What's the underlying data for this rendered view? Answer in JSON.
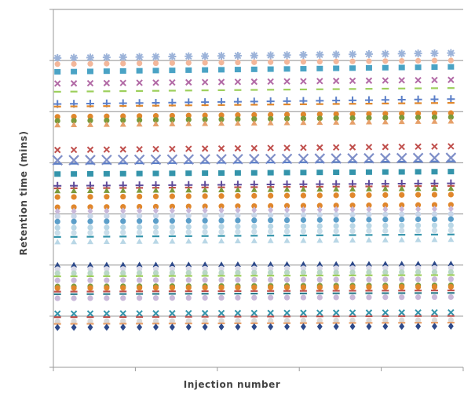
{
  "chart_data": {
    "type": "scatter",
    "title": "",
    "xlabel": "Injection number",
    "ylabel": "Retention time (mins)",
    "xlim": [
      0,
      25
    ],
    "ylim": [
      0,
      7
    ],
    "grid": true,
    "injections": [
      1,
      2,
      3,
      4,
      5,
      6,
      7,
      8,
      9,
      10,
      11,
      12,
      13,
      14,
      15,
      16,
      17,
      18,
      19,
      20,
      21,
      22,
      23,
      24,
      25
    ],
    "series": [
      {
        "y": 6.05,
        "marker": "star",
        "color": "#9cb3d9",
        "drift": 0.004
      },
      {
        "y": 5.93,
        "marker": "circle",
        "color": "#f3b79a",
        "drift": 0.003
      },
      {
        "y": 5.78,
        "marker": "square",
        "color": "#4aa3c5",
        "drift": 0.004
      },
      {
        "y": 5.55,
        "marker": "x",
        "color": "#b26aa6",
        "drift": 0.003
      },
      {
        "y": 5.39,
        "marker": "dash",
        "color": "#9ccf5b",
        "drift": 0.003
      },
      {
        "y": 5.15,
        "marker": "plus",
        "color": "#5b7fc8",
        "drift": 0.004
      },
      {
        "y": 5.1,
        "marker": "dash",
        "color": "#e0872c",
        "drift": 0.003
      },
      {
        "y": 4.9,
        "marker": "circle",
        "color": "#e0872c",
        "drift": 0.003
      },
      {
        "y": 4.82,
        "marker": "circle",
        "color": "#7a9a3c",
        "drift": 0.003
      },
      {
        "y": 4.74,
        "marker": "triangle",
        "color": "#e6a06a",
        "drift": 0.003
      },
      {
        "y": 4.25,
        "marker": "x",
        "color": "#c0504d",
        "drift": 0.003
      },
      {
        "y": 4.05,
        "marker": "bigx",
        "color": "#7f8fc8",
        "drift": 0.002
      },
      {
        "y": 3.98,
        "marker": "dash",
        "color": "#5b7fc8",
        "drift": 0.002
      },
      {
        "y": 3.78,
        "marker": "square",
        "color": "#3494ab",
        "drift": 0.002
      },
      {
        "y": 3.55,
        "marker": "plus",
        "color": "#5d4a9a",
        "drift": 0.002
      },
      {
        "y": 3.5,
        "marker": "dash",
        "color": "#c0504d",
        "drift": 0.002
      },
      {
        "y": 3.45,
        "marker": "triangle",
        "color": "#7a9a3c",
        "drift": 0.002
      },
      {
        "y": 3.33,
        "marker": "circle",
        "color": "#e0872c",
        "drift": 0.002
      },
      {
        "y": 3.13,
        "marker": "circle",
        "color": "#e0872c",
        "drift": 0.002
      },
      {
        "y": 3.05,
        "marker": "diamond",
        "color": "#c9b8d9",
        "drift": 0.002
      },
      {
        "y": 2.95,
        "marker": "circle",
        "color": "#c9d6e8",
        "drift": 0.002
      },
      {
        "y": 2.85,
        "marker": "circle",
        "color": "#5b9ec9",
        "drift": 0.002
      },
      {
        "y": 2.73,
        "marker": "circle",
        "color": "#b9d7e6",
        "drift": 0.002
      },
      {
        "y": 2.63,
        "marker": "circle",
        "color": "#c9dde9",
        "drift": 0.002
      },
      {
        "y": 2.55,
        "marker": "dash",
        "color": "#3494ab",
        "drift": 0.002
      },
      {
        "y": 2.45,
        "marker": "triangle",
        "color": "#b9d7e6",
        "drift": 0.002
      },
      {
        "y": 2.0,
        "marker": "triangle",
        "color": "#2e4a8a",
        "drift": 0.001
      },
      {
        "y": 1.92,
        "marker": "circle",
        "color": "#d9d9e8",
        "drift": 0.001
      },
      {
        "y": 1.84,
        "marker": "circle",
        "color": "#b9d7c6",
        "drift": 0.001
      },
      {
        "y": 1.78,
        "marker": "dash",
        "color": "#9ccf5b",
        "drift": 0.001
      },
      {
        "y": 1.7,
        "marker": "circle",
        "color": "#c9b8d9",
        "drift": 0.001
      },
      {
        "y": 1.58,
        "marker": "circle",
        "color": "#7a9a3c",
        "drift": 0.001
      },
      {
        "y": 1.55,
        "marker": "circle",
        "color": "#e0872c",
        "drift": 0.001
      },
      {
        "y": 1.48,
        "marker": "dash",
        "color": "#c0504d",
        "drift": 0.001
      },
      {
        "y": 1.43,
        "marker": "dash",
        "color": "#2e7a8a",
        "drift": 0.001
      },
      {
        "y": 1.35,
        "marker": "circle",
        "color": "#c9b8d9",
        "drift": 0.001
      },
      {
        "y": 1.05,
        "marker": "x",
        "color": "#3494ab",
        "drift": 0.001
      },
      {
        "y": 0.98,
        "marker": "dash",
        "color": "#c0504d",
        "drift": 0.001
      },
      {
        "y": 0.9,
        "marker": "circle",
        "color": "#d9d9d9",
        "drift": 0.001
      },
      {
        "y": 0.85,
        "marker": "dash",
        "color": "#e6a06a",
        "drift": 0.001
      },
      {
        "y": 0.78,
        "marker": "diamond",
        "color": "#2e4a8a",
        "drift": 0.001
      }
    ]
  }
}
